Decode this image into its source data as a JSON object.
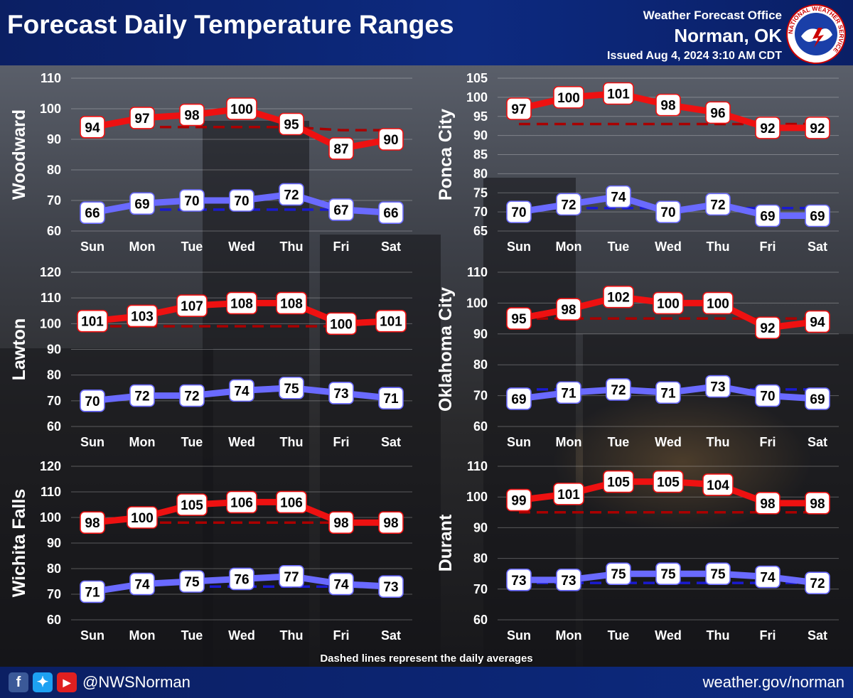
{
  "header": {
    "title": "Forecast Daily Temperature Ranges",
    "office_line1": "Weather Forecast Office",
    "office_line2": "Norman, OK",
    "issued": "Issued Aug 4, 2024 3:10 AM CDT"
  },
  "logo": {
    "text": "NATIONAL WEATHER SERVICE",
    "icon": "nws-logo-icon"
  },
  "footer": {
    "handle": "@NWSNorman",
    "website": "weather.gov/norman",
    "social_icons": [
      "facebook-icon",
      "twitter-icon",
      "youtube-icon"
    ]
  },
  "note": "Dashed lines represent the daily averages",
  "colors": {
    "high": "#ee1111",
    "high_avg": "#aa0000",
    "low": "#6a6aff",
    "low_avg": "#1a1ad0",
    "header": "#0d2a80"
  },
  "chart_data": [
    {
      "type": "line",
      "ylabel": "Woodward",
      "categories": [
        "Sun",
        "Mon",
        "Tue",
        "Wed",
        "Thu",
        "Fri",
        "Sat"
      ],
      "ylim": [
        60,
        110
      ],
      "yticks": [
        60,
        70,
        80,
        90,
        100,
        110
      ],
      "series": [
        {
          "values": [
            94,
            97,
            98,
            100,
            95,
            87,
            90
          ]
        },
        {
          "values": [
            66,
            69,
            70,
            70,
            72,
            67,
            66
          ]
        }
      ],
      "averages": {
        "high": [
          null,
          94,
          94,
          94,
          94,
          93,
          93
        ],
        "low": [
          null,
          67,
          67,
          67,
          67,
          67,
          null
        ]
      }
    },
    {
      "type": "line",
      "ylabel": "Ponca City",
      "categories": [
        "Sun",
        "Mon",
        "Tue",
        "Wed",
        "Thu",
        "Fri",
        "Sat"
      ],
      "ylim": [
        65,
        105
      ],
      "yticks": [
        65,
        70,
        75,
        80,
        85,
        90,
        95,
        100,
        105
      ],
      "series": [
        {
          "values": [
            97,
            100,
            101,
            98,
            96,
            92,
            92
          ]
        },
        {
          "values": [
            70,
            72,
            74,
            70,
            72,
            69,
            69
          ]
        }
      ],
      "averages": {
        "high": [
          93,
          93,
          93,
          93,
          93,
          93,
          93
        ],
        "low": [
          null,
          71,
          71,
          71,
          71,
          71,
          71
        ]
      }
    },
    {
      "type": "line",
      "ylabel": "Lawton",
      "categories": [
        "Sun",
        "Mon",
        "Tue",
        "Wed",
        "Thu",
        "Fri",
        "Sat"
      ],
      "ylim": [
        60,
        120
      ],
      "yticks": [
        60,
        70,
        80,
        90,
        100,
        110,
        120
      ],
      "series": [
        {
          "values": [
            101,
            103,
            107,
            108,
            108,
            100,
            101
          ]
        },
        {
          "values": [
            70,
            72,
            72,
            74,
            75,
            73,
            71
          ]
        }
      ],
      "averages": {
        "high": [
          99,
          99,
          99,
          99,
          99,
          99,
          null
        ],
        "low": [
          null,
          null,
          null,
          null,
          null,
          null,
          null
        ]
      }
    },
    {
      "type": "line",
      "ylabel": "Oklahoma City",
      "categories": [
        "Sun",
        "Mon",
        "Tue",
        "Wed",
        "Thu",
        "Fri",
        "Sat"
      ],
      "ylim": [
        60,
        110
      ],
      "yticks": [
        60,
        70,
        80,
        90,
        100,
        110
      ],
      "series": [
        {
          "values": [
            95,
            98,
            102,
            100,
            100,
            92,
            94
          ]
        },
        {
          "values": [
            69,
            71,
            72,
            71,
            73,
            70,
            69
          ]
        }
      ],
      "averages": {
        "high": [
          95,
          95,
          95,
          95,
          95,
          95,
          95
        ],
        "low": [
          72,
          72,
          72,
          72,
          72,
          72,
          72
        ]
      }
    },
    {
      "type": "line",
      "ylabel": "Wichita Falls",
      "categories": [
        "Sun",
        "Mon",
        "Tue",
        "Wed",
        "Thu",
        "Fri",
        "Sat"
      ],
      "ylim": [
        60,
        120
      ],
      "yticks": [
        60,
        70,
        80,
        90,
        100,
        110,
        120
      ],
      "series": [
        {
          "values": [
            98,
            100,
            105,
            106,
            106,
            98,
            98
          ]
        },
        {
          "values": [
            71,
            74,
            75,
            76,
            77,
            74,
            73
          ]
        }
      ],
      "averages": {
        "high": [
          null,
          98,
          98,
          98,
          98,
          98,
          null
        ],
        "low": [
          null,
          null,
          73,
          73,
          73,
          73,
          null
        ]
      }
    },
    {
      "type": "line",
      "ylabel": "Durant",
      "categories": [
        "Sun",
        "Mon",
        "Tue",
        "Wed",
        "Thu",
        "Fri",
        "Sat"
      ],
      "ylim": [
        60,
        110
      ],
      "yticks": [
        60,
        70,
        80,
        90,
        100,
        110
      ],
      "series": [
        {
          "values": [
            99,
            101,
            105,
            105,
            104,
            98,
            98
          ]
        },
        {
          "values": [
            73,
            73,
            75,
            75,
            75,
            74,
            72
          ]
        }
      ],
      "averages": {
        "high": [
          95,
          95,
          95,
          95,
          95,
          95,
          95
        ],
        "low": [
          72,
          72,
          72,
          72,
          72,
          72,
          72
        ]
      }
    }
  ]
}
